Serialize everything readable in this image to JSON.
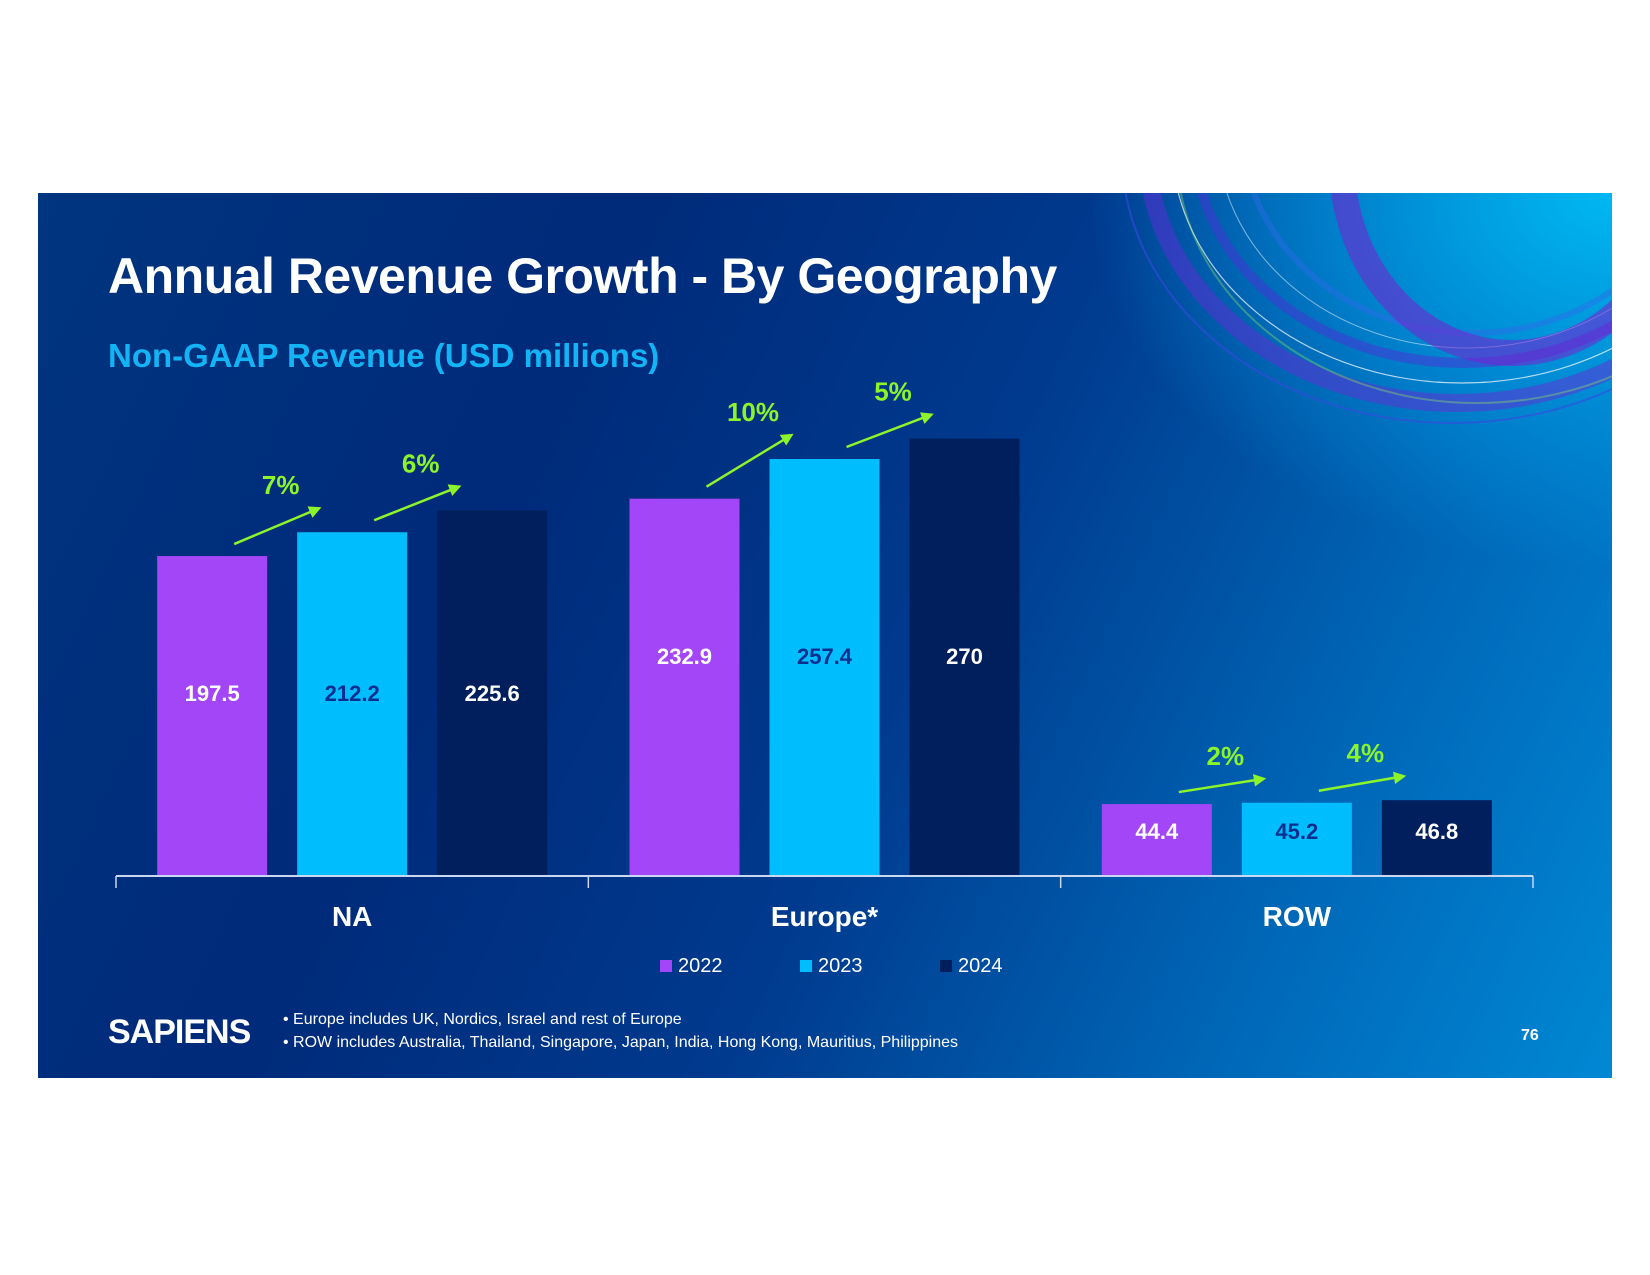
{
  "slide": {
    "title": "Annual Revenue Growth - By Geography",
    "subtitle": "Non-GAAP Revenue (USD millions)",
    "logo_text": "SAPIENS",
    "footnotes": [
      "Europe includes UK, Nordics, Israel and rest of Europe",
      "ROW includes Australia, Thailand, Singapore, Japan, India, Hong Kong, Mauritius, Philippines"
    ],
    "page_number": "76",
    "colors": {
      "background_dark": "#002a7a",
      "background_light": "#0088d4",
      "subtitle": "#12b4f5",
      "growth_arrow": "#8cf52a"
    }
  },
  "chart_data": {
    "type": "bar",
    "title": "Annual Revenue Growth - By Geography",
    "subtitle": "Non-GAAP Revenue (USD millions)",
    "xlabel": "",
    "ylabel": "",
    "categories": [
      "NA",
      "Europe*",
      "ROW"
    ],
    "series": [
      {
        "name": "2022",
        "color": "#a346f7",
        "label_color": "#ffffff",
        "values": [
          197.5,
          232.9,
          44.4
        ],
        "labels": [
          "197.5",
          "232.9",
          "44.4"
        ]
      },
      {
        "name": "2023",
        "color": "#00bdfd",
        "label_color": "#0b2f8f",
        "values": [
          212.2,
          257.4,
          45.2
        ],
        "labels": [
          "212.2",
          "257.4",
          "45.2"
        ]
      },
      {
        "name": "2024",
        "color": "#001f5c",
        "label_color": "#ffffff",
        "values": [
          225.6,
          270,
          46.8
        ],
        "labels": [
          "225.6",
          "270",
          "46.8"
        ]
      }
    ],
    "growth_annotations": [
      {
        "category": "NA",
        "from": "2022",
        "to": "2023",
        "label": "7%"
      },
      {
        "category": "NA",
        "from": "2023",
        "to": "2024",
        "label": "6%"
      },
      {
        "category": "Europe*",
        "from": "2022",
        "to": "2023",
        "label": "10%"
      },
      {
        "category": "Europe*",
        "from": "2023",
        "to": "2024",
        "label": "5%"
      },
      {
        "category": "ROW",
        "from": "2022",
        "to": "2023",
        "label": "2%"
      },
      {
        "category": "ROW",
        "from": "2023",
        "to": "2024",
        "label": "4%"
      }
    ],
    "ylim": [
      0,
      300
    ],
    "grid": false,
    "y_axis_visible": false,
    "legend": [
      "2022",
      "2023",
      "2024"
    ],
    "legend_position": "bottom-center"
  }
}
